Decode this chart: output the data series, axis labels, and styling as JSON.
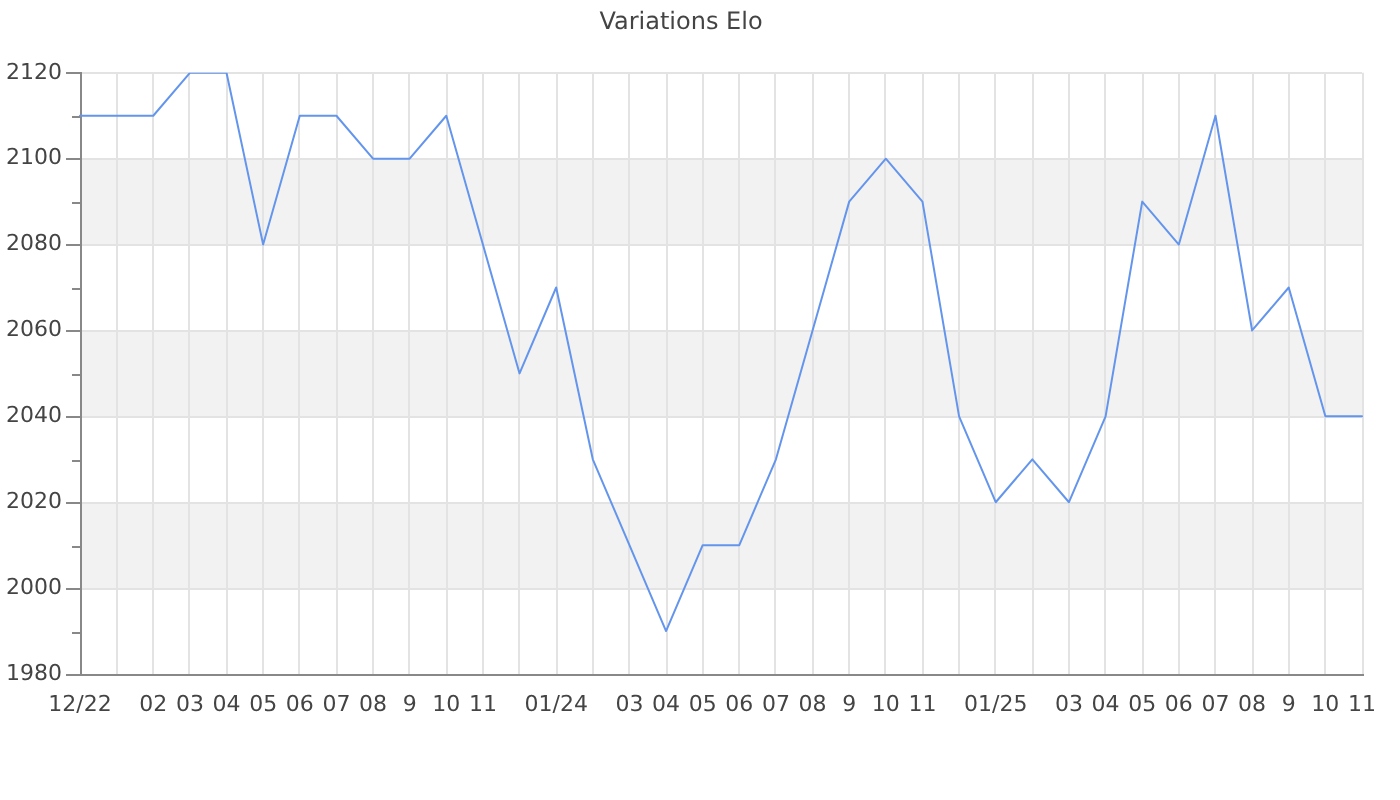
{
  "chart_data": {
    "type": "line",
    "title": "Variations Elo",
    "categories": [
      "12/22",
      null,
      "02",
      "03",
      "04",
      "05",
      "06",
      "07",
      "08",
      "9",
      "10",
      "11",
      null,
      "01/24",
      null,
      "03",
      "04",
      "05",
      "06",
      "07",
      "08",
      "9",
      "10",
      "11",
      null,
      "01/25",
      null,
      "03",
      "04",
      "05",
      "06",
      "07",
      "08",
      "9",
      "10",
      "11"
    ],
    "series": [
      {
        "color": "#6495ed",
        "values": [
          2110,
          2110,
          2110,
          2120,
          2120,
          2080,
          2110,
          2110,
          2100,
          2100,
          2110,
          2080,
          2050,
          2070,
          2030,
          2010,
          1990,
          2010,
          2010,
          2030,
          2060,
          2090,
          2100,
          2090,
          2040,
          2020,
          2030,
          2020,
          2040,
          2090,
          2080,
          2110,
          2060,
          2070,
          2040,
          2040
        ]
      }
    ],
    "ylim": [
      1980,
      2120
    ],
    "yticks": [
      1980,
      {
        "value": 1990,
        "label": null
      },
      2000,
      {
        "value": 2010,
        "label": null
      },
      2020,
      {
        "value": 2030,
        "label": null
      },
      2040,
      {
        "value": 2050,
        "label": null
      },
      2060,
      {
        "value": 2070,
        "label": null
      },
      2080,
      {
        "value": 2090,
        "label": null
      },
      2100,
      {
        "value": 2110,
        "label": null
      },
      2120
    ],
    "bands": [
      {
        "axis": "y",
        "from": 2000,
        "to": 2020,
        "color": "#f2f2f2"
      },
      {
        "axis": "y",
        "from": 2040,
        "to": 2060,
        "color": "#f2f2f2"
      },
      {
        "axis": "y",
        "from": 2080,
        "to": 2100,
        "color": "#f2f2f2"
      }
    ],
    "grid": true,
    "legend": false,
    "marker": "none",
    "line_style": "solid"
  }
}
